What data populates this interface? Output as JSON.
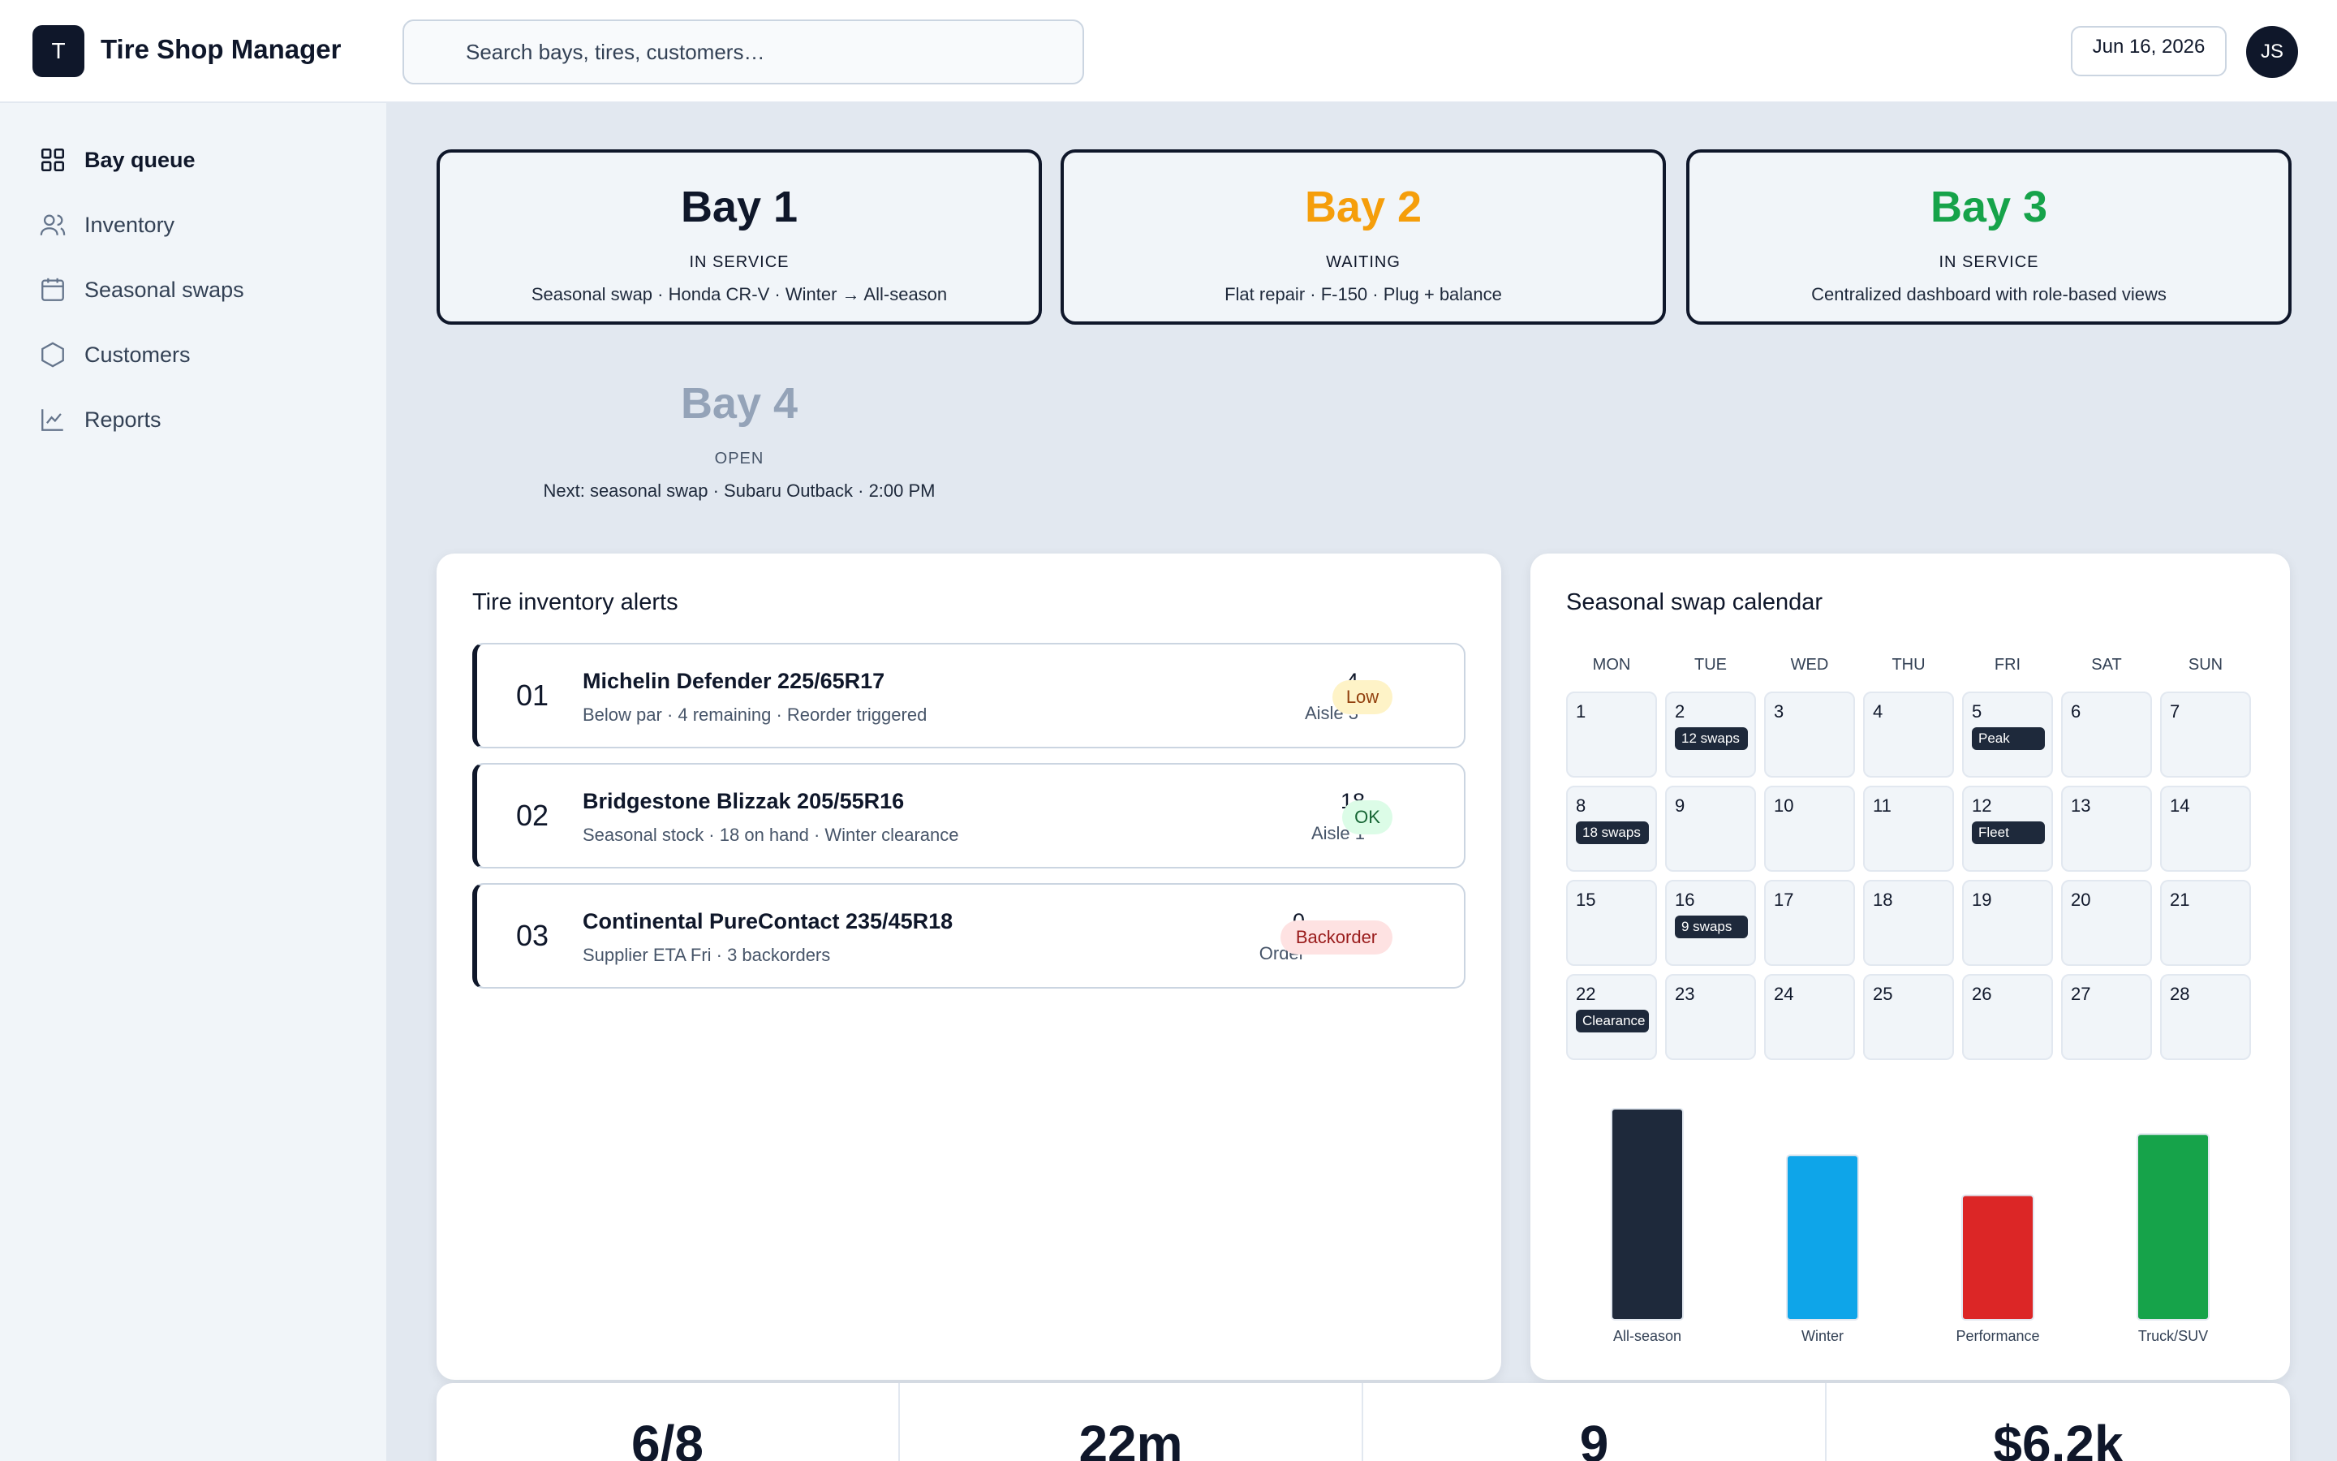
{
  "app": {
    "logo_letter": "T",
    "title": "Tire Shop Manager"
  },
  "search": {
    "placeholder": "Search bays, tires, customers…"
  },
  "header": {
    "date": "Jun 16, 2026",
    "avatar_initials": "JS"
  },
  "sidebar": {
    "items": [
      {
        "label": "Bay queue",
        "icon": "grid-icon",
        "active": true
      },
      {
        "label": "Inventory",
        "icon": "users-icon",
        "active": false
      },
      {
        "label": "Seasonal swaps",
        "icon": "calendar-icon",
        "active": false
      },
      {
        "label": "Customers",
        "icon": "hexagon-icon",
        "active": false
      },
      {
        "label": "Reports",
        "icon": "line-chart-icon",
        "active": false
      }
    ]
  },
  "bays": [
    {
      "title": "Bay 1",
      "status": "IN SERVICE",
      "desc": "Seasonal swap · Honda CR-V · Winter → All-season",
      "color": "#0f172a"
    },
    {
      "title": "Bay 2",
      "status": "WAITING",
      "desc": "Flat repair · F-150 · Plug + balance",
      "color": "#f59e0b"
    },
    {
      "title": "Bay 3",
      "status": "IN SERVICE",
      "desc": "Centralized dashboard with role-based views",
      "color": "#16a34a"
    },
    {
      "title": "Bay 4",
      "status": "OPEN",
      "desc": "Next: seasonal swap · Subaru Outback · 2:00 PM",
      "color": "#94a3b8"
    }
  ],
  "alerts": {
    "title": "Tire inventory alerts",
    "items": [
      {
        "num": "01",
        "name": "Michelin Defender 225/65R17",
        "sub": "Below par · 4 remaining · Reorder triggered",
        "qty": "4",
        "loc": "Aisle 3",
        "badge": "Low",
        "badge_bg": "#fef3c7",
        "badge_fg": "#92400e"
      },
      {
        "num": "02",
        "name": "Bridgestone Blizzak 205/55R16",
        "sub": "Seasonal stock · 18 on hand · Winter clearance",
        "qty": "18",
        "loc": "Aisle 1",
        "badge": "OK",
        "badge_bg": "#dcfce7",
        "badge_fg": "#166534"
      },
      {
        "num": "03",
        "name": "Continental PureContact 235/45R18",
        "sub": "Supplier ETA Fri · 3 backorders",
        "qty": "0",
        "loc": "Order",
        "badge": "Backorder",
        "badge_bg": "#fee2e2",
        "badge_fg": "#991b1b"
      }
    ]
  },
  "calendar": {
    "title": "Seasonal swap calendar",
    "weekdays": [
      "MON",
      "TUE",
      "WED",
      "THU",
      "FRI",
      "SAT",
      "SUN"
    ],
    "days": [
      {
        "day": "1",
        "tag": ""
      },
      {
        "day": "2",
        "tag": "12 swaps"
      },
      {
        "day": "3",
        "tag": ""
      },
      {
        "day": "4",
        "tag": ""
      },
      {
        "day": "5",
        "tag": "Peak"
      },
      {
        "day": "6",
        "tag": ""
      },
      {
        "day": "7",
        "tag": ""
      },
      {
        "day": "8",
        "tag": "18 swaps"
      },
      {
        "day": "9",
        "tag": ""
      },
      {
        "day": "10",
        "tag": ""
      },
      {
        "day": "11",
        "tag": ""
      },
      {
        "day": "12",
        "tag": "Fleet"
      },
      {
        "day": "13",
        "tag": ""
      },
      {
        "day": "14",
        "tag": ""
      },
      {
        "day": "15",
        "tag": ""
      },
      {
        "day": "16",
        "tag": "9 swaps"
      },
      {
        "day": "17",
        "tag": ""
      },
      {
        "day": "18",
        "tag": ""
      },
      {
        "day": "19",
        "tag": ""
      },
      {
        "day": "20",
        "tag": ""
      },
      {
        "day": "21",
        "tag": ""
      },
      {
        "day": "22",
        "tag": "Clearance"
      },
      {
        "day": "23",
        "tag": ""
      },
      {
        "day": "24",
        "tag": ""
      },
      {
        "day": "25",
        "tag": ""
      },
      {
        "day": "26",
        "tag": ""
      },
      {
        "day": "27",
        "tag": ""
      },
      {
        "day": "28",
        "tag": ""
      }
    ]
  },
  "chart_data": {
    "type": "bar",
    "categories": [
      "All-season",
      "Winter",
      "Performance",
      "Truck/SUV"
    ],
    "values": [
      100,
      78,
      59,
      88
    ],
    "colors": [
      "#1e293b",
      "#0ea5e9",
      "#dc2626",
      "#16a34a"
    ],
    "ylim": [
      0,
      100
    ],
    "grid": false
  },
  "stats": [
    {
      "value": "6/8"
    },
    {
      "value": "22m"
    },
    {
      "value": "9"
    },
    {
      "value": "$6.2k"
    }
  ]
}
